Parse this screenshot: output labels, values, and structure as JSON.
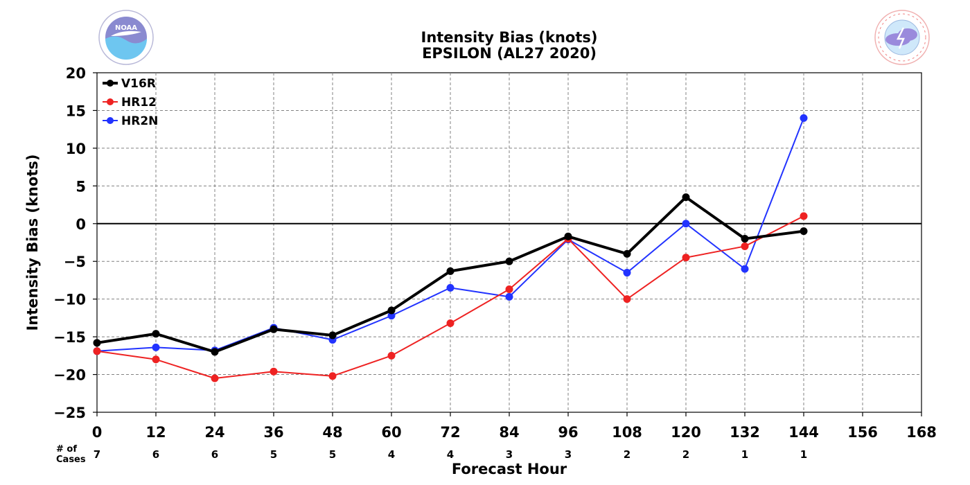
{
  "title_line1": "Intensity Bias (knots)",
  "title_line2": "EPSILON (AL27 2020)",
  "logos": {
    "left": {
      "icon": "noaa-logo",
      "text": "NOAA",
      "ring_text": "NATIONAL OCEANIC AND ATMOSPHERIC ADMINISTRATION · U.S. DEPARTMENT OF COMMERCE"
    },
    "right": {
      "icon": "national-weather-service-logo",
      "ring_text": "NATIONAL WEATHER SERVICE"
    }
  },
  "cases_label_line1": "# of",
  "cases_label_line2": "Cases",
  "colors": {
    "V16R": "#000000",
    "HR12": "#ee2222",
    "HR2N": "#2233ff",
    "grid": "#808080"
  },
  "chart_data": {
    "type": "line",
    "title": "Intensity Bias (knots)\nEPSILON (AL27 2020)",
    "xlabel": "Forecast Hour",
    "ylabel": "Intensity Bias (knots)",
    "xlim": [
      0,
      168
    ],
    "ylim": [
      -25,
      20
    ],
    "xticks": [
      0,
      12,
      24,
      36,
      48,
      60,
      72,
      84,
      96,
      108,
      120,
      132,
      144,
      156,
      168
    ],
    "yticks": [
      -25,
      -20,
      -15,
      -10,
      -5,
      0,
      5,
      10,
      15,
      20
    ],
    "ytick_labels": [
      "−25",
      "−20",
      "−15",
      "−10",
      "−5",
      "0",
      "5",
      "10",
      "15",
      "20"
    ],
    "grid": true,
    "legend_position": "top-left",
    "x": [
      0,
      12,
      24,
      36,
      48,
      60,
      72,
      84,
      96,
      108,
      120,
      132,
      144
    ],
    "cases": [
      7,
      6,
      6,
      5,
      5,
      4,
      4,
      3,
      3,
      2,
      2,
      1,
      1
    ],
    "series": [
      {
        "name": "V16R",
        "color": "#000000",
        "width": 4,
        "marker": 5.5,
        "values": [
          -15.8,
          -14.6,
          -17.0,
          -14.0,
          -14.8,
          -11.5,
          -6.3,
          -5.0,
          -1.7,
          -4.0,
          3.5,
          -2.0,
          -1.0
        ]
      },
      {
        "name": "HR12",
        "color": "#ee2222",
        "width": 2,
        "marker": 5.5,
        "values": [
          -16.9,
          -18.0,
          -20.5,
          -19.6,
          -20.2,
          -17.5,
          -13.2,
          -8.7,
          -2.0,
          -10.0,
          -4.5,
          -3.0,
          1.0
        ]
      },
      {
        "name": "HR2N",
        "color": "#2233ff",
        "width": 2,
        "marker": 5.5,
        "values": [
          -16.9,
          -16.4,
          -16.8,
          -13.8,
          -15.4,
          -12.2,
          -8.5,
          -9.7,
          -2.1,
          -6.5,
          0.0,
          -6.0,
          14.0
        ]
      }
    ]
  }
}
